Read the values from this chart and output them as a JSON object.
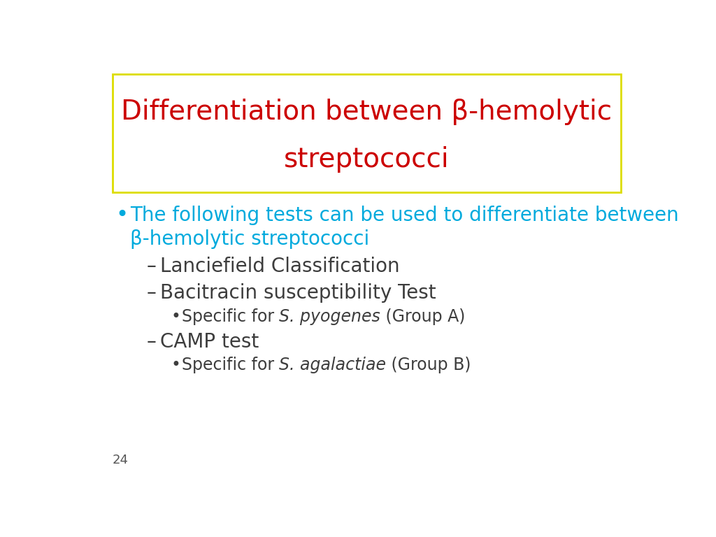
{
  "title_line1": "Differentiation between β-hemolytic",
  "title_line2": "streptococci",
  "title_color": "#cc0000",
  "title_box_edge_color": "#dddd00",
  "bg_color": "#ffffff",
  "bullet_color": "#00aadd",
  "sub_color": "#3d3d3d",
  "page_number": "24",
  "bullet1_line1": "The following tests can be used to differentiate between",
  "bullet1_line2": "β-hemolytic streptococci",
  "dash1": "Lanciefield Classification",
  "dash2": "Bacitracin susceptibility Test",
  "sub_bullet1_pre": "Specific for ",
  "sub_bullet1_italic": "S. pyogenes",
  "sub_bullet1_post": " (Group A)",
  "dash3": "CAMP test",
  "sub_bullet2_pre": "Specific for ",
  "sub_bullet2_italic": "S. agalactiae",
  "sub_bullet2_post": " (Group B)",
  "title_fontsize": 28,
  "bullet_fontsize": 20,
  "dash_fontsize": 20,
  "sub_fontsize": 17,
  "page_fontsize": 13
}
